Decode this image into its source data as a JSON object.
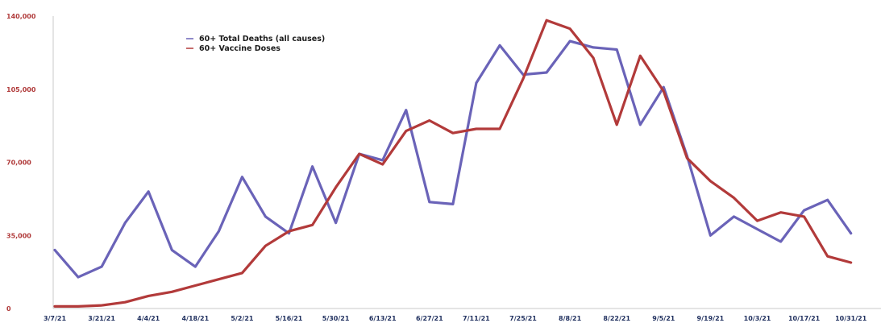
{
  "chart_data": {
    "type": "line",
    "title": "",
    "xlabel": "",
    "ylabel": "",
    "ylim": [
      0,
      140000
    ],
    "grid": false,
    "legend_position": "top-left",
    "yticks": [
      "0",
      "35,000",
      "70,000",
      "105,000",
      "140,000"
    ],
    "ytick_values": [
      0,
      35000,
      70000,
      105000,
      140000
    ],
    "xtick_labels": [
      "3/7/21",
      "3/21/21",
      "4/4/21",
      "4/18/21",
      "5/2/21",
      "5/16/21",
      "5/30/21",
      "6/13/21",
      "6/27/21",
      "7/11/21",
      "7/25/21",
      "8/8/21",
      "8/22/21",
      "9/5/21",
      "9/19/21",
      "10/3/21",
      "10/17/21",
      "10/31/21"
    ],
    "x": [
      "3/7/21",
      "3/14/21",
      "3/21/21",
      "3/28/21",
      "4/4/21",
      "4/11/21",
      "4/18/21",
      "4/25/21",
      "5/2/21",
      "5/9/21",
      "5/16/21",
      "5/23/21",
      "5/30/21",
      "6/6/21",
      "6/13/21",
      "6/20/21",
      "6/27/21",
      "7/4/21",
      "7/11/21",
      "7/18/21",
      "7/25/21",
      "8/1/21",
      "8/8/21",
      "8/15/21",
      "8/22/21",
      "8/29/21",
      "9/5/21",
      "9/12/21",
      "9/19/21",
      "9/26/21",
      "10/3/21",
      "10/10/21",
      "10/17/21",
      "10/24/21",
      "10/31/21"
    ],
    "series": [
      {
        "name": "60+ Total Deaths (all causes)",
        "color": "#6a63b8",
        "values": [
          28000,
          15000,
          20000,
          41000,
          56000,
          28000,
          20000,
          37000,
          63000,
          44000,
          36000,
          68000,
          41000,
          74000,
          71000,
          95000,
          51000,
          50000,
          108000,
          126000,
          112000,
          113000,
          128000,
          125000,
          124000,
          88000,
          106000,
          73000,
          35000,
          44000,
          38000,
          32000,
          47000,
          52000,
          36000
        ]
      },
      {
        "name": "60+ Vaccine Doses",
        "color": "#b23a3a",
        "values": [
          1000,
          1000,
          1500,
          3000,
          6000,
          8000,
          11000,
          14000,
          17000,
          30000,
          37000,
          40000,
          58000,
          74000,
          69000,
          85000,
          90000,
          84000,
          86000,
          86000,
          110000,
          138000,
          134000,
          120000,
          88000,
          121000,
          104000,
          72000,
          61000,
          53000,
          42000,
          46000,
          44000,
          25000,
          22000
        ]
      }
    ]
  }
}
